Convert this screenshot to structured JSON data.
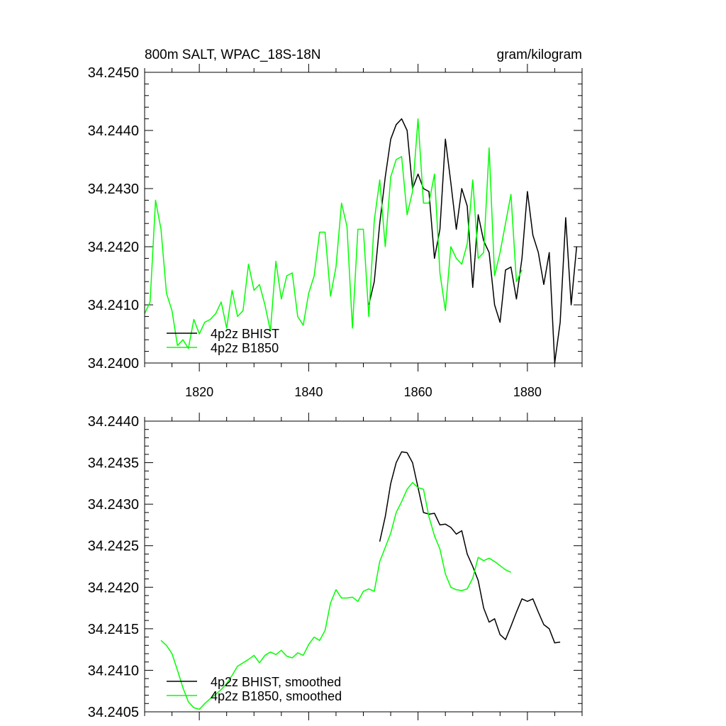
{
  "chart_data": [
    {
      "type": "line",
      "title_left": "800m SALT, WPAC_18S-18N",
      "title_right": "gram/kilogram",
      "xlim": [
        1810,
        1890
      ],
      "ylim": [
        34.24,
        34.245
      ],
      "x_tick_labels": [
        "1820",
        "1840",
        "1860",
        "1880"
      ],
      "x_tick_values": [
        1820,
        1840,
        1860,
        1880
      ],
      "y_tick_labels": [
        "34.2400",
        "34.2410",
        "34.2420",
        "34.2430",
        "34.2440",
        "34.2450"
      ],
      "y_tick_values": [
        34.24,
        34.241,
        34.242,
        34.243,
        34.244,
        34.245
      ],
      "legend_position": "bottom-left",
      "series": [
        {
          "name": "4p2z BHIST",
          "color": "#000000",
          "x": [
            1851,
            1852,
            1853,
            1854,
            1855,
            1856,
            1857,
            1858,
            1859,
            1860,
            1861,
            1862,
            1863,
            1864,
            1865,
            1866,
            1867,
            1868,
            1869,
            1870,
            1871,
            1872,
            1873,
            1874,
            1875,
            1876,
            1877,
            1878,
            1879,
            1880,
            1881,
            1882,
            1883,
            1884,
            1885,
            1886,
            1887,
            1888,
            1889
          ],
          "y": [
            34.241,
            34.2414,
            34.2424,
            34.2432,
            34.24385,
            34.2441,
            34.2442,
            34.244,
            34.243,
            34.24325,
            34.243,
            34.24295,
            34.2418,
            34.2423,
            34.24385,
            34.2431,
            34.2423,
            34.243,
            34.2427,
            34.2413,
            34.24255,
            34.2421,
            34.2419,
            34.241,
            34.2407,
            34.2416,
            34.24165,
            34.2411,
            34.2418,
            34.24295,
            34.2422,
            34.2419,
            34.24135,
            34.2419,
            34.24,
            34.2407,
            34.2425,
            34.241,
            34.242
          ]
        },
        {
          "name": "4p2z B1850",
          "color": "#00ff00",
          "x": [
            1810,
            1811,
            1812,
            1813,
            1814,
            1815,
            1816,
            1817,
            1818,
            1819,
            1820,
            1821,
            1822,
            1823,
            1824,
            1825,
            1826,
            1827,
            1828,
            1829,
            1830,
            1831,
            1832,
            1833,
            1834,
            1835,
            1836,
            1837,
            1838,
            1839,
            1840,
            1841,
            1842,
            1843,
            1844,
            1845,
            1846,
            1847,
            1848,
            1849,
            1850,
            1851,
            1852,
            1853,
            1854,
            1855,
            1856,
            1857,
            1858,
            1859,
            1860,
            1861,
            1862,
            1863,
            1864,
            1865,
            1866,
            1867,
            1868,
            1869,
            1870,
            1871,
            1872,
            1873,
            1874,
            1875,
            1876,
            1877,
            1878,
            1879
          ],
          "y": [
            34.24085,
            34.24105,
            34.2428,
            34.2423,
            34.2412,
            34.2409,
            34.2403,
            34.2404,
            34.24025,
            34.24075,
            34.2405,
            34.2407,
            34.24075,
            34.24085,
            34.24105,
            34.2406,
            34.24125,
            34.2408,
            34.2409,
            34.2417,
            34.24125,
            34.24135,
            34.241,
            34.24055,
            34.24175,
            34.2411,
            34.2415,
            34.24155,
            34.2408,
            34.24065,
            34.2412,
            34.2415,
            34.24225,
            34.24225,
            34.24115,
            34.24165,
            34.24275,
            34.24235,
            34.2406,
            34.2423,
            34.2423,
            34.2408,
            34.24245,
            34.24315,
            34.242,
            34.2432,
            34.2435,
            34.24355,
            34.24255,
            34.24295,
            34.2442,
            34.24275,
            34.24275,
            34.24325,
            34.24155,
            34.2409,
            34.242,
            34.2418,
            34.2417,
            34.24205,
            34.24315,
            34.2418,
            34.2419,
            34.2437,
            34.2415,
            34.2419,
            34.2424,
            34.2429,
            34.2414,
            34.2416
          ]
        }
      ]
    },
    {
      "type": "line",
      "title_left": "",
      "title_right": "",
      "xlim": [
        1810,
        1890
      ],
      "ylim": [
        34.2405,
        34.244
      ],
      "x_tick_labels": [],
      "x_tick_values": [
        1820,
        1840,
        1860,
        1880
      ],
      "y_tick_labels": [
        "34.2405",
        "34.2410",
        "34.2415",
        "34.2420",
        "34.2425",
        "34.2430",
        "34.2435",
        "34.2440"
      ],
      "y_tick_values": [
        34.2405,
        34.241,
        34.2415,
        34.242,
        34.2425,
        34.243,
        34.2435,
        34.244
      ],
      "legend_position": "bottom-left",
      "series": [
        {
          "name": "4p2z BHIST, smoothed",
          "color": "#000000",
          "x": [
            1853,
            1854,
            1855,
            1856,
            1857,
            1858,
            1859,
            1860,
            1861,
            1862,
            1863,
            1864,
            1865,
            1866,
            1867,
            1868,
            1869,
            1870,
            1871,
            1872,
            1873,
            1874,
            1875,
            1876,
            1877,
            1878,
            1879,
            1880,
            1881,
            1882,
            1883,
            1884,
            1885,
            1886
          ],
          "y": [
            34.24255,
            34.24285,
            34.24325,
            34.2435,
            34.24363,
            34.24362,
            34.2435,
            34.2432,
            34.2429,
            34.24288,
            34.24289,
            34.24275,
            34.24276,
            34.24272,
            34.24264,
            34.24268,
            34.2424,
            34.24225,
            34.24208,
            34.24175,
            34.24158,
            34.24162,
            34.24143,
            34.24137,
            34.24153,
            34.2417,
            34.24186,
            34.24183,
            34.24186,
            34.2417,
            34.24155,
            34.2415,
            34.24133,
            34.24134
          ]
        },
        {
          "name": "4p2z B1850, smoothed",
          "color": "#00ff00",
          "x": [
            1813,
            1814,
            1815,
            1816,
            1817,
            1818,
            1819,
            1820,
            1821,
            1822,
            1823,
            1824,
            1825,
            1826,
            1827,
            1828,
            1829,
            1830,
            1831,
            1832,
            1833,
            1834,
            1835,
            1836,
            1837,
            1838,
            1839,
            1840,
            1841,
            1842,
            1843,
            1844,
            1845,
            1846,
            1847,
            1848,
            1849,
            1850,
            1851,
            1852,
            1853,
            1854,
            1855,
            1856,
            1857,
            1858,
            1859,
            1860,
            1861,
            1862,
            1863,
            1864,
            1865,
            1866,
            1867,
            1868,
            1869,
            1870,
            1871,
            1872,
            1873,
            1874,
            1875,
            1876,
            1877
          ],
          "y": [
            34.24136,
            34.2413,
            34.2412,
            34.241,
            34.24079,
            34.24062,
            34.24055,
            34.24053,
            34.2406,
            34.24066,
            34.24071,
            34.24077,
            34.24084,
            34.24094,
            34.24105,
            34.24109,
            34.24113,
            34.24118,
            34.24109,
            34.24118,
            34.24122,
            34.24119,
            34.24124,
            34.24117,
            34.24115,
            34.24121,
            34.24118,
            34.24131,
            34.2414,
            34.24136,
            34.24148,
            34.24181,
            34.24197,
            34.24187,
            34.24187,
            34.24188,
            34.24183,
            34.24195,
            34.24198,
            34.24195,
            34.24231,
            34.24248,
            34.24265,
            34.2429,
            34.24303,
            34.24318,
            34.24326,
            34.2432,
            34.24318,
            34.24285,
            34.24262,
            34.24246,
            34.24216,
            34.242,
            34.24197,
            34.24196,
            34.24198,
            34.24211,
            34.24236,
            34.24232,
            34.24235,
            34.24231,
            34.24226,
            34.24221,
            34.24218
          ]
        }
      ]
    }
  ]
}
